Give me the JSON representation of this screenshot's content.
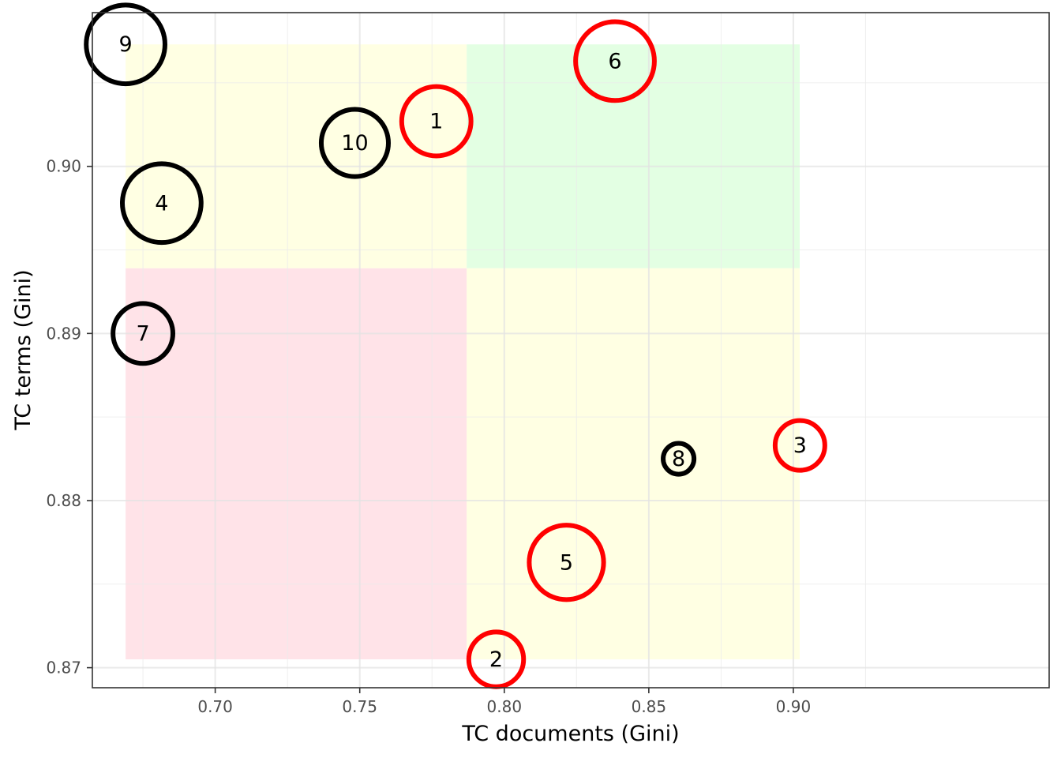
{
  "chart_data": {
    "type": "scatter",
    "title": "",
    "xlabel": "TC documents (Gini)",
    "ylabel": "TC terms (Gini)",
    "xlim": [
      0.6575,
      0.9885
    ],
    "ylim": [
      0.8688,
      0.9092
    ],
    "x_ticks": [
      0.7,
      0.75,
      0.8,
      0.85,
      0.9
    ],
    "x_tick_labels": [
      "0.70",
      "0.75",
      "0.80",
      "0.85",
      "0.90"
    ],
    "y_ticks": [
      0.87,
      0.88,
      0.89,
      0.9
    ],
    "y_tick_labels": [
      "0.87",
      "0.88",
      "0.89",
      "0.90"
    ],
    "grid": true,
    "legend": "none",
    "regions": [
      {
        "x0": 0.669,
        "x1": 0.787,
        "y0": 0.8939,
        "y1": 0.9073,
        "color": "#ffffe0"
      },
      {
        "x0": 0.787,
        "x1": 0.9022,
        "y0": 0.8939,
        "y1": 0.9073,
        "color": "#e0ffe0"
      },
      {
        "x0": 0.669,
        "x1": 0.787,
        "y0": 0.8705,
        "y1": 0.8939,
        "color": "#ffe0e5"
      },
      {
        "x0": 0.787,
        "x1": 0.9022,
        "y0": 0.8705,
        "y1": 0.8939,
        "color": "#ffffe0"
      }
    ],
    "points": [
      {
        "label": "1",
        "x": 0.7765,
        "y": 0.9027,
        "size": 0.65,
        "color": "#ff0000"
      },
      {
        "label": "2",
        "x": 0.7972,
        "y": 0.8705,
        "size": 0.45,
        "color": "#ff0000"
      },
      {
        "label": "3",
        "x": 0.9023,
        "y": 0.8833,
        "size": 0.38,
        "color": "#ff0000"
      },
      {
        "label": "4",
        "x": 0.6815,
        "y": 0.8978,
        "size": 0.78,
        "color": "#000000"
      },
      {
        "label": "5",
        "x": 0.8215,
        "y": 0.8763,
        "size": 0.72,
        "color": "#ff0000"
      },
      {
        "label": "6",
        "x": 0.8383,
        "y": 0.9063,
        "size": 0.78,
        "color": "#ff0000"
      },
      {
        "label": "7",
        "x": 0.675,
        "y": 0.89,
        "size": 0.52,
        "color": "#000000"
      },
      {
        "label": "8",
        "x": 0.8603,
        "y": 0.8825,
        "size": 0.12,
        "color": "#000000"
      },
      {
        "label": "9",
        "x": 0.669,
        "y": 0.9073,
        "size": 0.78,
        "color": "#000000"
      },
      {
        "label": "10",
        "x": 0.7483,
        "y": 0.9014,
        "size": 0.62,
        "color": "#000000"
      }
    ]
  }
}
